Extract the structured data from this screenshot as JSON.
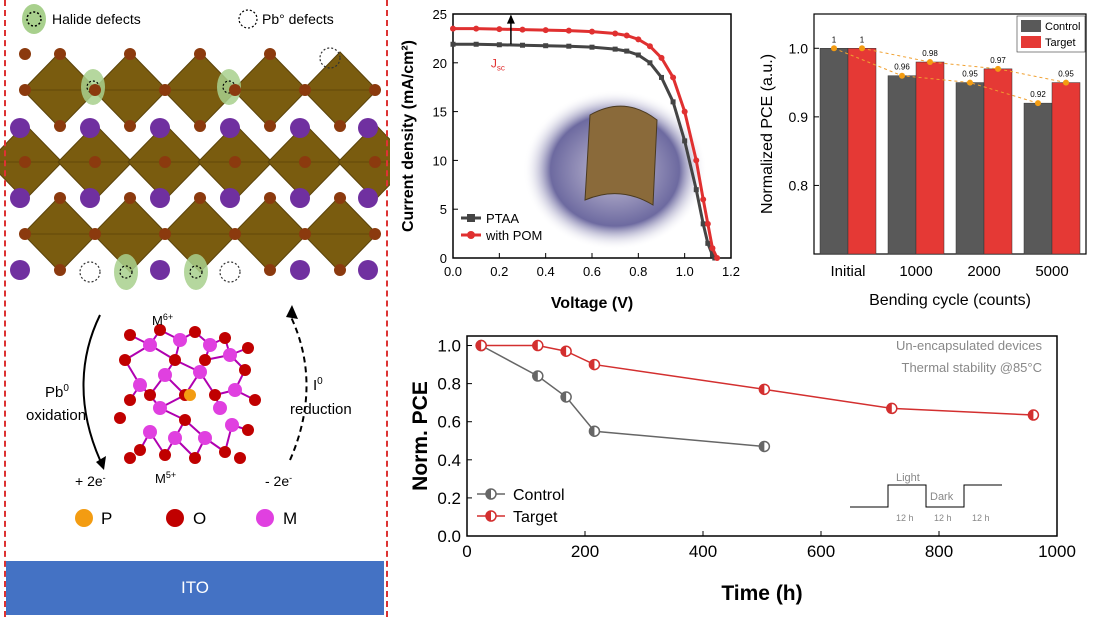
{
  "schematic": {
    "legend_halide": "Halide defects",
    "legend_pb": "Pb° defects",
    "m6": "M",
    "m6_sup": "6+",
    "m5": "M",
    "m5_sup": "5+",
    "pb_oxidation_1": "Pb",
    "pb_oxidation_sup": "0",
    "pb_oxidation_2": "oxidation",
    "i_reduction_1": "I",
    "i_reduction_sup": "0",
    "i_reduction_2": "reduction",
    "plus_e": "+ 2e",
    "minus_e": "- 2e",
    "e_sup": "-",
    "atom_p": "P",
    "atom_o": "O",
    "atom_m": "M",
    "ito": "ITO",
    "colors": {
      "octahedron": "#7a5c0f",
      "pb_atom": "#8b3a0e",
      "cation": "#7030a0",
      "halide_highlight": "#a8d08d",
      "p_atom": "#f39c12",
      "o_atom": "#c00000",
      "m_atom": "#e040e0",
      "ito": "#4472c4"
    }
  },
  "chart_data": [
    {
      "type": "line",
      "xlabel": "Voltage (V)",
      "ylabel": "Current density (mA/cm²)",
      "xlim": [
        0.0,
        1.2
      ],
      "ylim": [
        0,
        25
      ],
      "xticks": [
        "0.0",
        "0.2",
        "0.4",
        "0.6",
        "0.8",
        "1.0",
        "1.2"
      ],
      "yticks": [
        "0",
        "5",
        "10",
        "15",
        "20",
        "25"
      ],
      "annotation": "J",
      "annotation_sub": "sc",
      "legend_position": "bottom-left",
      "series": [
        {
          "name": "PTAA",
          "color": "#444444",
          "marker": "square",
          "x": [
            0.0,
            0.1,
            0.2,
            0.3,
            0.4,
            0.5,
            0.6,
            0.7,
            0.75,
            0.8,
            0.85,
            0.9,
            0.95,
            1.0,
            1.05,
            1.08,
            1.1,
            1.12,
            1.13
          ],
          "y": [
            21.9,
            21.9,
            21.85,
            21.8,
            21.75,
            21.7,
            21.6,
            21.4,
            21.2,
            20.8,
            20.0,
            18.5,
            16.0,
            12.0,
            7.0,
            3.5,
            1.5,
            0.3,
            0
          ]
        },
        {
          "name": "with POM",
          "color": "#e03030",
          "marker": "circle",
          "x": [
            0.0,
            0.1,
            0.2,
            0.3,
            0.4,
            0.5,
            0.6,
            0.7,
            0.75,
            0.8,
            0.85,
            0.9,
            0.95,
            1.0,
            1.05,
            1.08,
            1.1,
            1.12,
            1.14
          ],
          "y": [
            23.5,
            23.5,
            23.45,
            23.4,
            23.35,
            23.3,
            23.2,
            23.0,
            22.8,
            22.4,
            21.7,
            20.5,
            18.5,
            15.0,
            10.0,
            6.0,
            3.5,
            1.0,
            0
          ]
        }
      ]
    },
    {
      "type": "bar",
      "ylabel": "Normalized PCE (a.u.)",
      "xlabel": "Bending cycle (counts)",
      "categories": [
        "Initial",
        "1000",
        "2000",
        "5000"
      ],
      "ylim": [
        0.7,
        1.05
      ],
      "yticks": [
        "0.8",
        "0.9",
        "1.0"
      ],
      "legend_position": "top-right",
      "series": [
        {
          "name": "Control",
          "color": "#595959",
          "values": [
            1,
            0.96,
            0.95,
            0.92
          ],
          "labels": [
            "1",
            "0.96",
            "0.95",
            "0.92"
          ]
        },
        {
          "name": "Target",
          "color": "#e53935",
          "values": [
            1,
            0.98,
            0.97,
            0.95
          ],
          "labels": [
            "1",
            "0.98",
            "0.97",
            "0.95"
          ]
        }
      ]
    },
    {
      "type": "line",
      "xlabel": "Time (h)",
      "ylabel": "Norm. PCE",
      "xlim": [
        0,
        1000
      ],
      "ylim": [
        0.0,
        1.05
      ],
      "xticks": [
        "0",
        "200",
        "400",
        "600",
        "800",
        "1000"
      ],
      "yticks": [
        "0.0",
        "0.2",
        "0.4",
        "0.6",
        "0.8",
        "1.0"
      ],
      "annotations": [
        "Un-encapsulated devices",
        "Thermal stability @85°C"
      ],
      "inset": {
        "light": "Light",
        "dark": "Dark",
        "h1": "12 h",
        "h2": "12 h",
        "h3": "12 h"
      },
      "legend_position": "bottom-left",
      "series": [
        {
          "name": "Control",
          "color": "#666666",
          "x": [
            24,
            120,
            168,
            216,
            504
          ],
          "y": [
            1.0,
            0.84,
            0.73,
            0.55,
            0.47
          ]
        },
        {
          "name": "Target",
          "color": "#d32f2f",
          "x": [
            24,
            120,
            168,
            216,
            504,
            720,
            960
          ],
          "y": [
            1.0,
            1.0,
            0.97,
            0.9,
            0.77,
            0.67,
            0.635
          ]
        }
      ]
    }
  ]
}
